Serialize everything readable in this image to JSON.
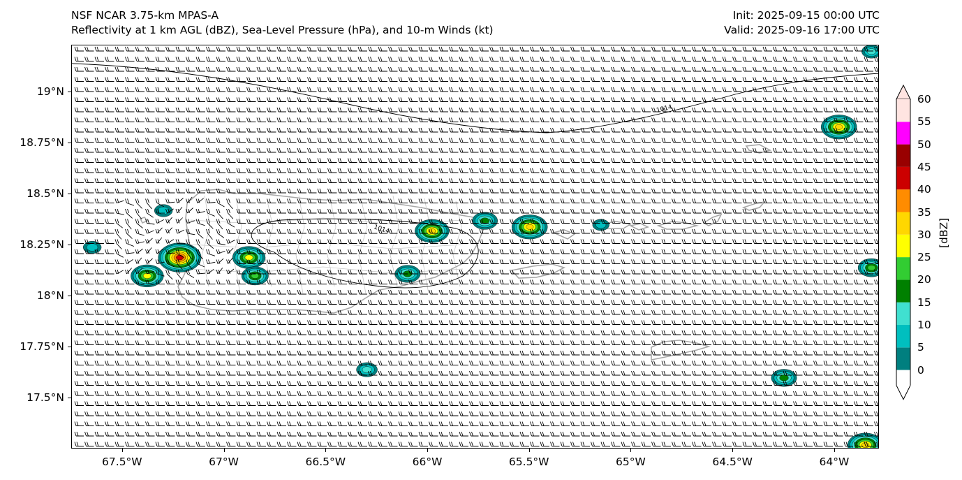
{
  "title": {
    "left_line1": "NSF NCAR 3.75-km MPAS-A",
    "left_line2": "Reflectivity at 1 km AGL (dBZ), Sea-Level Pressure (hPa), and 10-m Winds (kt)",
    "right_line1": "Init: 2025-09-15 00:00 UTC",
    "right_line2": "Valid: 2025-09-16 17:00 UTC"
  },
  "map": {
    "lon_range": [
      -67.75,
      -63.78
    ],
    "lat_range": [
      17.25,
      19.23
    ],
    "lat_ticks": [
      {
        "lat": 19.0,
        "label": "19°N"
      },
      {
        "lat": 18.75,
        "label": "18.75°N"
      },
      {
        "lat": 18.5,
        "label": "18.5°N"
      },
      {
        "lat": 18.25,
        "label": "18.25°N"
      },
      {
        "lat": 18.0,
        "label": "18°N"
      },
      {
        "lat": 17.75,
        "label": "17.75°N"
      },
      {
        "lat": 17.5,
        "label": "17.5°N"
      }
    ],
    "lon_ticks": [
      {
        "lon": -67.5,
        "label": "67.5°W"
      },
      {
        "lon": -67.0,
        "label": "67°W"
      },
      {
        "lon": -66.5,
        "label": "66.5°W"
      },
      {
        "lon": -66.0,
        "label": "66°W"
      },
      {
        "lon": -65.5,
        "label": "65.5°W"
      },
      {
        "lon": -65.0,
        "label": "65°W"
      },
      {
        "lon": -64.5,
        "label": "64.5°W"
      },
      {
        "lon": -64.0,
        "label": "64°W"
      }
    ],
    "isobar_label": "1014",
    "isobar_label_2": "1014"
  },
  "colorbar": {
    "unit": "[dBZ]",
    "levels": [
      0,
      5,
      10,
      15,
      20,
      25,
      30,
      35,
      40,
      45,
      50,
      55,
      60
    ],
    "labels": [
      "0",
      "5",
      "10",
      "15",
      "20",
      "25",
      "30",
      "35",
      "40",
      "45",
      "50",
      "55",
      "60"
    ],
    "colors": [
      "#007f7f",
      "#00bfbf",
      "#40e0d0",
      "#008000",
      "#32cd32",
      "#ffff00",
      "#ffd700",
      "#ff8c00",
      "#cc0000",
      "#990000",
      "#ff00ff",
      "#ffe4e1"
    ]
  },
  "echoes": [
    {
      "lon": -63.98,
      "lat": 18.83,
      "dbz": 32
    },
    {
      "lon": -67.22,
      "lat": 18.19,
      "dbz": 42
    },
    {
      "lon": -67.38,
      "lat": 18.1,
      "dbz": 28
    },
    {
      "lon": -66.88,
      "lat": 18.19,
      "dbz": 28
    },
    {
      "lon": -66.85,
      "lat": 18.1,
      "dbz": 20
    },
    {
      "lon": -65.98,
      "lat": 18.32,
      "dbz": 30
    },
    {
      "lon": -65.5,
      "lat": 18.34,
      "dbz": 32
    },
    {
      "lon": -65.72,
      "lat": 18.37,
      "dbz": 18
    },
    {
      "lon": -66.1,
      "lat": 18.11,
      "dbz": 18
    },
    {
      "lon": -66.3,
      "lat": 17.64,
      "dbz": 12
    },
    {
      "lon": -64.25,
      "lat": 17.6,
      "dbz": 18
    },
    {
      "lon": -63.82,
      "lat": 18.14,
      "dbz": 20
    },
    {
      "lon": -63.85,
      "lat": 17.27,
      "dbz": 32
    },
    {
      "lon": -67.3,
      "lat": 18.42,
      "dbz": 8
    },
    {
      "lon": -63.82,
      "lat": 19.2,
      "dbz": 10
    },
    {
      "lon": -67.65,
      "lat": 18.24,
      "dbz": 8
    },
    {
      "lon": -65.15,
      "lat": 18.35,
      "dbz": 6
    }
  ]
}
